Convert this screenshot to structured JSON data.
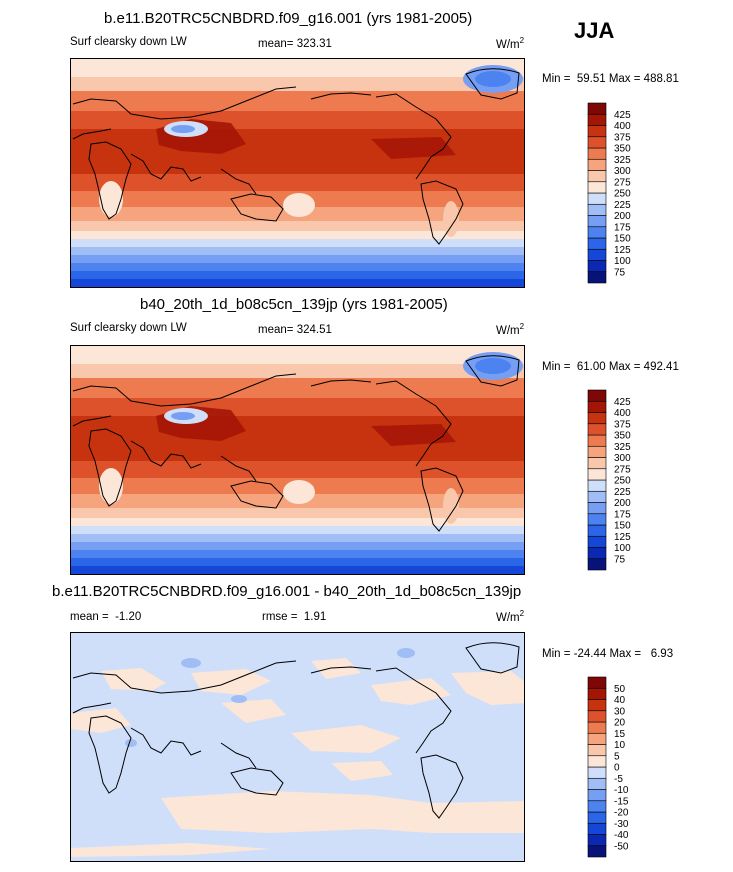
{
  "season": "JJA",
  "units_base": "W/m",
  "units_exp": "2",
  "chart_data": [
    {
      "type": "heatmap",
      "title": "b.e11.B20TRC5CNBDRD.f09_g16.001 (yrs 1981-2005)",
      "variable": "Surf clearsky down LW",
      "mean_label": "mean=",
      "mean": "323.31",
      "min_label": "Min =",
      "min": "59.51",
      "max_label": "Max =",
      "max": "488.81",
      "colorbar_levels": [
        "75",
        "100",
        "125",
        "150",
        "175",
        "200",
        "225",
        "250",
        "275",
        "300",
        "325",
        "350",
        "375",
        "400",
        "425"
      ],
      "colors": [
        "#08137a",
        "#0a28b4",
        "#1447d7",
        "#2b65e8",
        "#4c83f0",
        "#769ff3",
        "#a0bdf5",
        "#cfdff9",
        "#fce6d8",
        "#f9c7ac",
        "#f5a47d",
        "#ee7a4f",
        "#de522b",
        "#c7320f",
        "#a51506",
        "#7e0707"
      ]
    },
    {
      "type": "heatmap",
      "title": "b40_20th_1d_b08c5cn_139jp (yrs 1981-2005)",
      "variable": "Surf clearsky down LW",
      "mean_label": "mean=",
      "mean": "324.51",
      "min_label": "Min =",
      "min": "61.00",
      "max_label": "Max =",
      "max": "492.41",
      "colorbar_levels": [
        "75",
        "100",
        "125",
        "150",
        "175",
        "200",
        "225",
        "250",
        "275",
        "300",
        "325",
        "350",
        "375",
        "400",
        "425"
      ],
      "colors": [
        "#08137a",
        "#0a28b4",
        "#1447d7",
        "#2b65e8",
        "#4c83f0",
        "#769ff3",
        "#a0bdf5",
        "#cfdff9",
        "#fce6d8",
        "#f9c7ac",
        "#f5a47d",
        "#ee7a4f",
        "#de522b",
        "#c7320f",
        "#a51506",
        "#7e0707"
      ]
    },
    {
      "type": "heatmap",
      "title": "b.e11.B20TRC5CNBDRD.f09_g16.001 - b40_20th_1d_b08c5cn_139jp",
      "mean_label": "mean =",
      "mean": "-1.20",
      "rmse_label": "rmse =",
      "rmse": "1.91",
      "min_label": "Min =",
      "min": "-24.44",
      "max_label": "Max =",
      "max": "6.93",
      "colorbar_levels": [
        "-50",
        "-40",
        "-30",
        "-20",
        "-15",
        "-10",
        "-5",
        "0",
        "5",
        "10",
        "15",
        "20",
        "30",
        "40",
        "50"
      ],
      "colors": [
        "#08137a",
        "#0a28b4",
        "#1447d7",
        "#2b65e8",
        "#4c83f0",
        "#769ff3",
        "#a0bdf5",
        "#cfdff9",
        "#fce6d8",
        "#f9c7ac",
        "#f5a47d",
        "#ee7a4f",
        "#de522b",
        "#c7320f",
        "#a51506",
        "#7e0707"
      ]
    }
  ]
}
